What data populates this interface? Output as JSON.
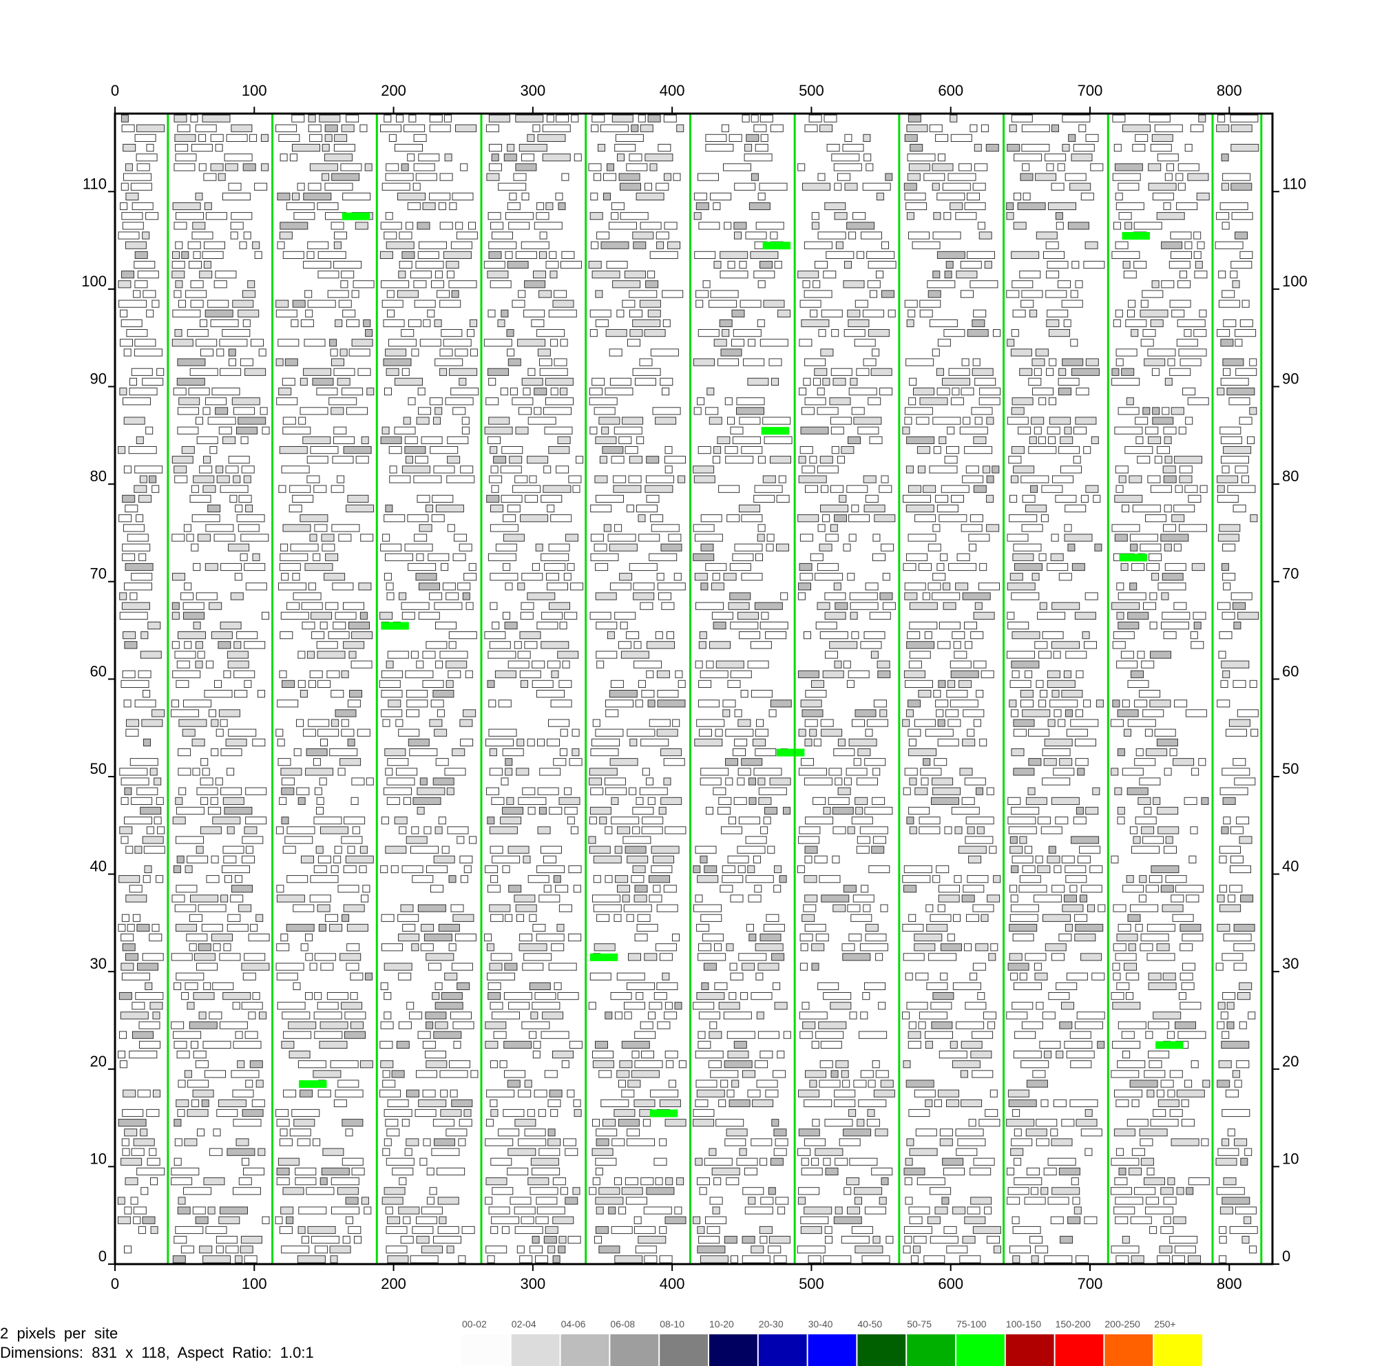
{
  "chart_data": {
    "type": "heatmap",
    "title": "",
    "xlim": [
      0,
      831
    ],
    "ylim": [
      0,
      118
    ],
    "x_ticks": [
      0,
      100,
      200,
      300,
      400,
      500,
      600,
      700,
      800
    ],
    "y_ticks": [
      0,
      10,
      20,
      30,
      40,
      50,
      60,
      70,
      80,
      90,
      100,
      110
    ],
    "column_boundaries": [
      0,
      38,
      113,
      188,
      263,
      338,
      413,
      488,
      563,
      638,
      713,
      788,
      823
    ],
    "cell_size_sites": 20,
    "highlight_cells": [
      {
        "x": 163,
        "y": 107
      },
      {
        "x": 465,
        "y": 104
      },
      {
        "x": 723,
        "y": 105
      },
      {
        "x": 464,
        "y": 85
      },
      {
        "x": 721,
        "y": 72
      },
      {
        "x": 191,
        "y": 65
      },
      {
        "x": 475,
        "y": 52
      },
      {
        "x": 341,
        "y": 31
      },
      {
        "x": 747,
        "y": 22
      },
      {
        "x": 132,
        "y": 18
      },
      {
        "x": 384,
        "y": 15
      }
    ],
    "legend": [
      {
        "label": "00-02",
        "color": "#fcfcfc"
      },
      {
        "label": "02-04",
        "color": "#dcdcdc"
      },
      {
        "label": "04-06",
        "color": "#bdbdbd"
      },
      {
        "label": "06-08",
        "color": "#9e9e9e"
      },
      {
        "label": "08-10",
        "color": "#808080"
      },
      {
        "label": "10-20",
        "color": "#000060"
      },
      {
        "label": "20-30",
        "color": "#0000b0"
      },
      {
        "label": "30-40",
        "color": "#0000ff"
      },
      {
        "label": "40-50",
        "color": "#006000"
      },
      {
        "label": "50-75",
        "color": "#00b000"
      },
      {
        "label": "75-100",
        "color": "#00ff00"
      },
      {
        "label": "100-150",
        "color": "#b00000"
      },
      {
        "label": "150-200",
        "color": "#ff0000"
      },
      {
        "label": "200-250",
        "color": "#ff6000"
      },
      {
        "label": "250+",
        "color": "#ffff00"
      }
    ],
    "colors": {
      "boundary": "#00dd00",
      "highlight": "#00ff00",
      "cell_border": "#333333",
      "cell_fill_light": "#ffffff",
      "cell_fill_mid": "#dddddd",
      "cell_fill_dark": "#bbbbbb"
    }
  },
  "info": {
    "line1": "2  pixels  per  site",
    "line2": "Dimensions:  831  x  118,  Aspect  Ratio:  1.0:1"
  }
}
